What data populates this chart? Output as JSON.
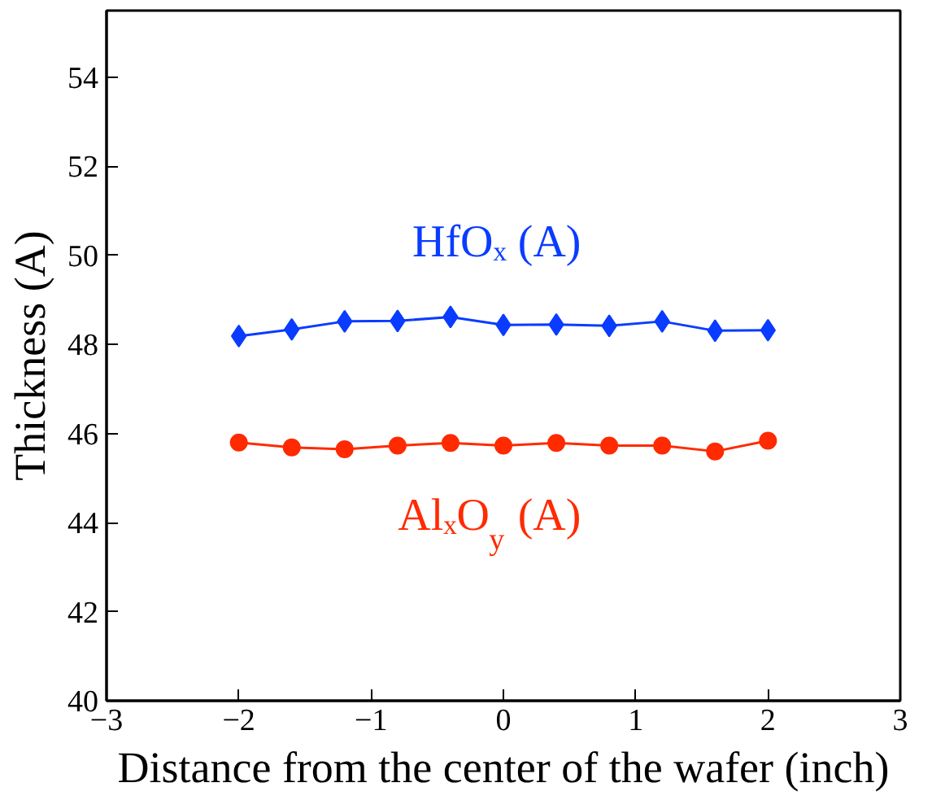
{
  "chart_data": {
    "type": "line",
    "xlabel": "Distance from the center of the wafer (inch)",
    "ylabel": "Thickness (A)",
    "x": [
      -2,
      -1.6,
      -1.2,
      -0.8,
      -0.4,
      0,
      0.4,
      0.8,
      1.2,
      1.6,
      2
    ],
    "series": [
      {
        "name": "HfOₓ (A)",
        "color": "#0a3cff",
        "marker": "diamond",
        "values": [
          48.19,
          48.34,
          48.52,
          48.53,
          48.62,
          48.44,
          48.45,
          48.42,
          48.52,
          48.31,
          48.32
        ]
      },
      {
        "name": "AlₓO$_{y}$ (A)",
        "color": "#ff2a00",
        "marker": "circle",
        "values": [
          45.8,
          45.69,
          45.65,
          45.73,
          45.79,
          45.73,
          45.79,
          45.73,
          45.73,
          45.6,
          45.84
        ]
      }
    ],
    "xlim": [
      -3,
      3
    ],
    "xticks": [
      -3,
      -2,
      -1,
      0,
      1,
      2,
      3
    ],
    "ylim": [
      40,
      55.5
    ],
    "yticks": [
      40,
      42,
      44,
      46,
      48,
      50,
      52,
      54
    ],
    "grid": false,
    "line_style": "solid"
  }
}
